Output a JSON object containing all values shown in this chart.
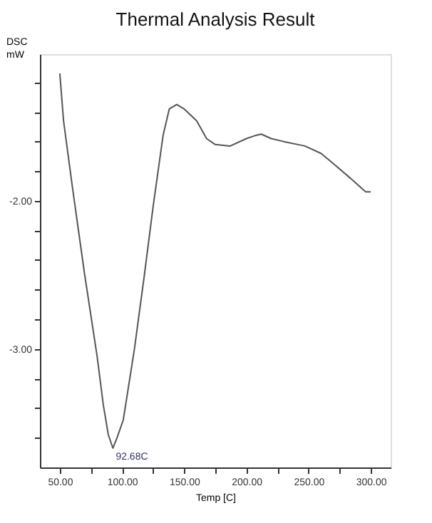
{
  "chart_data": {
    "type": "line",
    "title": "Thermal Analysis Result",
    "xlabel": "Temp [C]",
    "ylabel": "DSC\nmW",
    "x": [
      50,
      53,
      60,
      70,
      80,
      85,
      89,
      92.7,
      96,
      101,
      110,
      118,
      125,
      133,
      138,
      144,
      150,
      160,
      168,
      175,
      187,
      200,
      207,
      212,
      220,
      230,
      247,
      260,
      270,
      284,
      296,
      300
    ],
    "series": [
      {
        "color": "#555555",
        "values": [
          -1.14,
          -1.46,
          -1.9,
          -2.5,
          -3.05,
          -3.38,
          -3.58,
          -3.67,
          -3.6,
          -3.48,
          -3.0,
          -2.5,
          -2.04,
          -1.56,
          -1.38,
          -1.35,
          -1.38,
          -1.46,
          -1.58,
          -1.62,
          -1.63,
          -1.58,
          -1.56,
          -1.55,
          -1.58,
          -1.6,
          -1.63,
          -1.68,
          -1.75,
          -1.85,
          -1.94,
          -1.94
        ]
      }
    ],
    "xlim": [
      34,
      316
    ],
    "ylim": [
      -3.8,
      -1.01
    ],
    "xticks": [
      {
        "value": 50,
        "label": "50.00"
      },
      {
        "value": 75,
        "label": null
      },
      {
        "value": 100,
        "label": "100.00"
      },
      {
        "value": 125,
        "label": null
      },
      {
        "value": 150,
        "label": "150.00"
      },
      {
        "value": 175,
        "label": null
      },
      {
        "value": 200,
        "label": "200.00"
      },
      {
        "value": 225,
        "label": null
      },
      {
        "value": 250,
        "label": "250.00"
      },
      {
        "value": 275,
        "label": null
      },
      {
        "value": 300,
        "label": "300.00"
      }
    ],
    "yticks": [
      {
        "value": -3.6,
        "label": null
      },
      {
        "value": -3.4,
        "label": null
      },
      {
        "value": -3.2,
        "label": null
      },
      {
        "value": -3.0,
        "label": "-3.00"
      },
      {
        "value": -2.8,
        "label": null
      },
      {
        "value": -2.6,
        "label": null
      },
      {
        "value": -2.4,
        "label": null
      },
      {
        "value": -2.2,
        "label": null
      },
      {
        "value": -2.0,
        "label": "-2.00"
      },
      {
        "value": -1.8,
        "label": null
      },
      {
        "value": -1.6,
        "label": null
      },
      {
        "value": -1.4,
        "label": null
      },
      {
        "value": -1.2,
        "label": null
      }
    ],
    "annotations": [
      {
        "text": "92.68C",
        "x": 92.7,
        "y": -3.67
      }
    ],
    "grid": false,
    "marker": "none",
    "line_style": "solid"
  }
}
